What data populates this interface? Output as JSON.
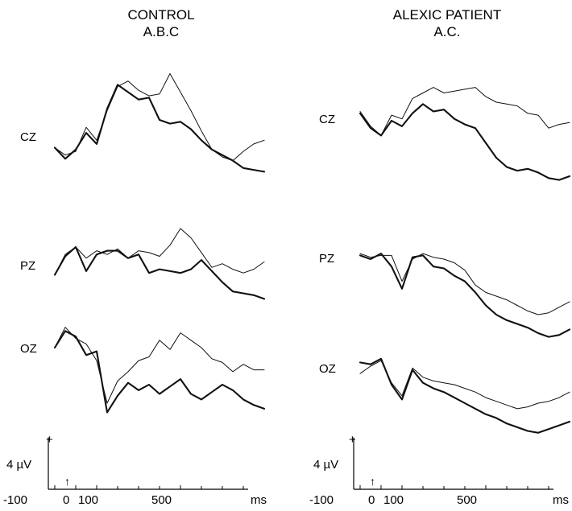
{
  "panels": [
    {
      "title": "CONTROL",
      "subtitle": "A.B.C",
      "channels": [
        "CZ",
        "PZ",
        "OZ"
      ],
      "scale_label": "4 µV",
      "plus_label": "+",
      "x_ticks": [
        "-100",
        "0",
        "100",
        "500",
        "ms"
      ],
      "stimulus_marker": "↑"
    },
    {
      "title": "ALEXIC PATIENT",
      "subtitle": "A.C.",
      "channels": [
        "CZ",
        "PZ",
        "OZ"
      ],
      "scale_label": "4 µV",
      "plus_label": "+",
      "x_ticks": [
        "-100",
        "0",
        "100",
        "500",
        "ms"
      ],
      "stimulus_marker": "↑"
    }
  ],
  "chart_data": [
    {
      "type": "line",
      "title": "CONTROL A.B.C",
      "x_unit": "ms",
      "x_ticks": [
        -100,
        0,
        100,
        500
      ],
      "xlim": [
        -100,
        900
      ],
      "y_unit": "µV",
      "scale_bar_uV": 4,
      "polarity": "positive up",
      "channels": [
        {
          "name": "CZ",
          "x": [
            -100,
            -50,
            0,
            50,
            100,
            150,
            200,
            250,
            300,
            350,
            400,
            450,
            500,
            550,
            600,
            650,
            700,
            750,
            800,
            850,
            900
          ],
          "series": [
            {
              "style": "thin",
              "values": [
                -1.0,
                -1.8,
                -1.4,
                1.2,
                -0.2,
                3.0,
                5.6,
                6.2,
                5.2,
                4.6,
                4.8,
                7.0,
                5.0,
                3.0,
                0.8,
                -1.2,
                -2.0,
                -2.4,
                -1.4,
                -0.6,
                -0.2
              ]
            },
            {
              "style": "thick",
              "values": [
                -1.0,
                -2.2,
                -1.2,
                0.6,
                -0.6,
                3.2,
                5.8,
                5.0,
                4.2,
                4.4,
                2.0,
                1.6,
                1.8,
                1.0,
                -0.2,
                -1.2,
                -1.8,
                -2.4,
                -3.2,
                -3.4,
                -3.6
              ]
            }
          ]
        },
        {
          "name": "PZ",
          "x": [
            -100,
            -50,
            0,
            50,
            100,
            150,
            200,
            250,
            300,
            350,
            400,
            450,
            500,
            550,
            600,
            650,
            700,
            750,
            800,
            850,
            900
          ],
          "series": [
            {
              "style": "thin",
              "values": [
                -1.0,
                1.2,
                2.0,
                0.8,
                1.6,
                1.2,
                1.8,
                0.8,
                1.6,
                1.4,
                1.0,
                2.2,
                4.0,
                3.0,
                1.4,
                -0.2,
                0.2,
                -0.4,
                -0.8,
                -0.4,
                0.4
              ]
            },
            {
              "style": "thick",
              "values": [
                -1.0,
                1.0,
                2.0,
                -0.6,
                1.2,
                1.6,
                1.6,
                0.8,
                1.2,
                -0.8,
                -0.4,
                -0.6,
                -0.8,
                -0.4,
                0.6,
                -0.6,
                -1.8,
                -2.8,
                -3.0,
                -3.2,
                -3.6
              ]
            }
          ]
        },
        {
          "name": "OZ",
          "x": [
            -100,
            -50,
            0,
            50,
            100,
            150,
            200,
            250,
            300,
            350,
            400,
            450,
            500,
            550,
            600,
            650,
            700,
            750,
            800,
            850,
            900
          ],
          "series": [
            {
              "style": "thin",
              "values": [
                0,
                2.2,
                1.0,
                0.4,
                -1.4,
                -6.0,
                -3.6,
                -2.6,
                -1.4,
                -1.0,
                0.8,
                -0.2,
                1.6,
                0.8,
                0.0,
                -1.2,
                -1.6,
                -2.6,
                -1.8,
                -2.4,
                -2.4
              ]
            },
            {
              "style": "thick",
              "values": [
                0,
                1.8,
                1.2,
                -0.8,
                -0.4,
                -7.0,
                -5.2,
                -3.8,
                -4.6,
                -4.0,
                -5.0,
                -4.2,
                -3.4,
                -5.0,
                -5.6,
                -4.8,
                -4.0,
                -4.6,
                -5.6,
                -6.2,
                -6.6
              ]
            }
          ]
        }
      ]
    },
    {
      "type": "line",
      "title": "ALEXIC PATIENT A.C.",
      "x_unit": "ms",
      "x_ticks": [
        -100,
        0,
        100,
        500
      ],
      "xlim": [
        -100,
        900
      ],
      "y_unit": "µV",
      "scale_bar_uV": 4,
      "polarity": "positive up",
      "channels": [
        {
          "name": "CZ",
          "x": [
            -100,
            -50,
            0,
            50,
            100,
            150,
            200,
            250,
            300,
            350,
            400,
            450,
            500,
            550,
            600,
            650,
            700,
            750,
            800,
            850,
            900
          ],
          "series": [
            {
              "style": "thin",
              "values": [
                1.0,
                -0.6,
                -1.6,
                0.6,
                0.2,
                2.4,
                3.0,
                3.6,
                3.0,
                3.2,
                3.4,
                3.6,
                2.6,
                2.0,
                1.8,
                1.6,
                0.8,
                0.6,
                -0.8,
                -0.4,
                -0.2
              ]
            },
            {
              "style": "thick",
              "values": [
                0.8,
                -0.8,
                -1.6,
                0.0,
                -0.6,
                0.8,
                1.8,
                1.0,
                1.2,
                0.2,
                -0.4,
                -0.8,
                -2.4,
                -4.0,
                -5.0,
                -5.4,
                -5.2,
                -5.6,
                -6.2,
                -6.4,
                -6.0
              ]
            }
          ]
        },
        {
          "name": "PZ",
          "x": [
            -100,
            -50,
            0,
            50,
            100,
            150,
            200,
            250,
            300,
            350,
            400,
            450,
            500,
            550,
            600,
            650,
            700,
            750,
            800,
            850,
            900
          ],
          "series": [
            {
              "style": "thin",
              "values": [
                0.6,
                0.2,
                0.4,
                0.4,
                -2.4,
                0.0,
                0.6,
                0.2,
                0.0,
                -0.4,
                -1.2,
                -2.8,
                -3.6,
                -4.0,
                -4.4,
                -5.0,
                -5.6,
                -6.0,
                -5.8,
                -5.2,
                -4.6
              ]
            },
            {
              "style": "thick",
              "values": [
                0.4,
                0.0,
                0.6,
                -0.8,
                -3.2,
                0.2,
                0.4,
                -0.8,
                -1.0,
                -1.8,
                -2.4,
                -3.6,
                -5.0,
                -6.0,
                -6.6,
                -7.0,
                -7.4,
                -8.0,
                -8.4,
                -8.2,
                -7.6
              ]
            }
          ]
        },
        {
          "name": "OZ",
          "x": [
            -100,
            -50,
            0,
            50,
            100,
            150,
            200,
            250,
            300,
            350,
            400,
            450,
            500,
            550,
            600,
            650,
            700,
            750,
            800,
            850,
            900
          ],
          "series": [
            {
              "style": "thin",
              "values": [
                -0.8,
                0.0,
                0.6,
                -1.8,
                -3.2,
                -0.2,
                -1.2,
                -1.6,
                -1.8,
                -2.0,
                -2.4,
                -2.8,
                -3.4,
                -3.8,
                -4.2,
                -4.6,
                -4.4,
                -4.0,
                -3.8,
                -3.4,
                -2.8
              ]
            },
            {
              "style": "thick",
              "values": [
                0.4,
                0.2,
                0.8,
                -2.0,
                -3.6,
                -0.4,
                -1.8,
                -2.4,
                -2.8,
                -3.4,
                -4.0,
                -4.6,
                -5.2,
                -5.6,
                -6.2,
                -6.6,
                -7.0,
                -7.2,
                -6.8,
                -6.4,
                -6.0
              ]
            }
          ]
        }
      ]
    }
  ]
}
